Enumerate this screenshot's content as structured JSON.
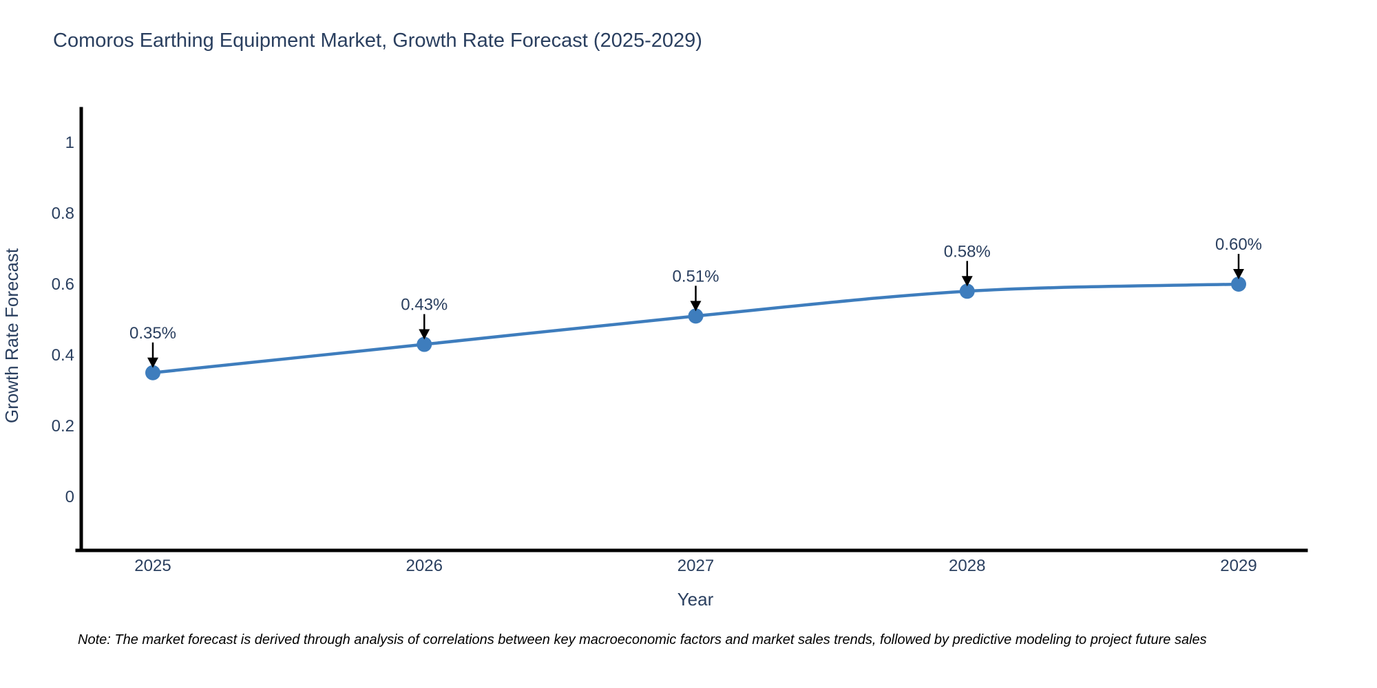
{
  "page": {
    "title": "Comoros Earthing Equipment Market, Growth Rate Forecast (2025-2029)",
    "note": "Note: The market forecast is derived through analysis of correlations between key macroeconomic factors and market sales trends, followed by predictive modeling to project future sales"
  },
  "colors": {
    "line": "#3e7dbd",
    "marker": "#3e7dbd",
    "text": "#2a3f5f",
    "axis": "#000000",
    "annotation_arrow": "#000000",
    "note_text": "#000000",
    "background": "#ffffff"
  },
  "chart_data": {
    "type": "line",
    "title": "Comoros Earthing Equipment Market, Growth Rate Forecast (2025-2029)",
    "x": [
      "2025",
      "2026",
      "2027",
      "2028",
      "2029"
    ],
    "y": [
      0.35,
      0.43,
      0.51,
      0.58,
      0.6
    ],
    "point_labels": [
      "0.35%",
      "0.43%",
      "0.51%",
      "0.58%",
      "0.60%"
    ],
    "xlabel": "Year",
    "ylabel": "Growth Rate Forecast",
    "yticks": [
      0,
      0.2,
      0.4,
      0.6,
      0.8,
      1
    ],
    "ytick_labels": [
      "0",
      "0.2",
      "0.4",
      "0.6",
      "0.8",
      "1"
    ],
    "ylim": [
      -0.15,
      1.09
    ],
    "grid": false,
    "legend": false,
    "line_shape": "spline",
    "marker": "circle"
  }
}
